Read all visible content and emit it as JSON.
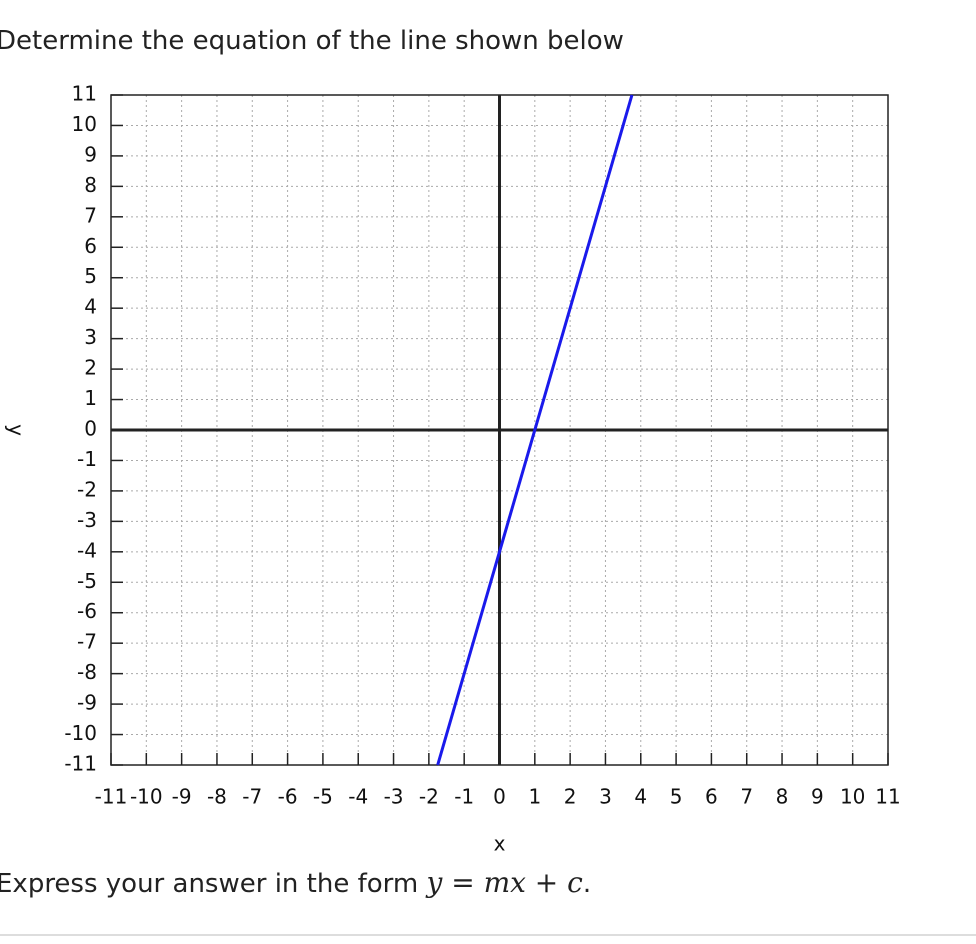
{
  "question": "Determine the equation of the line shown below",
  "chart_data": {
    "type": "line",
    "x": [
      -1.75,
      3.75
    ],
    "values": [
      -11,
      11
    ],
    "color": "#1a1aeb",
    "xlim": [
      -11,
      11
    ],
    "ylim": [
      -11,
      11
    ],
    "xticks": [
      -11,
      -10,
      -9,
      -8,
      -7,
      -6,
      -5,
      -4,
      -3,
      -2,
      -1,
      0,
      1,
      2,
      3,
      4,
      5,
      6,
      7,
      8,
      9,
      10,
      11
    ],
    "yticks": [
      -11,
      -10,
      -9,
      -8,
      -7,
      -6,
      -5,
      -4,
      -3,
      -2,
      -1,
      0,
      1,
      2,
      3,
      4,
      5,
      6,
      7,
      8,
      9,
      10,
      11
    ],
    "xlabel": "x",
    "ylabel": "y",
    "grid": true
  },
  "answer_prompt": {
    "text": "Express your answer in the form",
    "formula": "y = mx + c",
    "end": "."
  }
}
